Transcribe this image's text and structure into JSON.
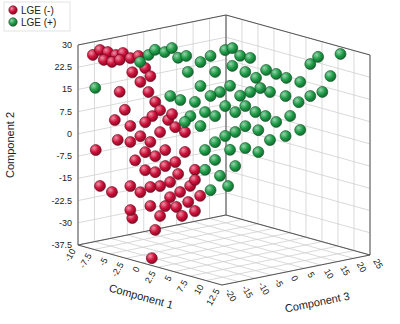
{
  "chart_data": {
    "type": "scatter",
    "x_label": "Component 1",
    "y_label": "Component 2",
    "z_label": "Component 3",
    "xlim": [
      -10,
      12.5
    ],
    "xticks": [
      -10,
      -7.5,
      -5,
      -2.5,
      0,
      2.5,
      5,
      7.5,
      10,
      12.5
    ],
    "ylim": [
      -37.5,
      30
    ],
    "yticks": [
      -37.5,
      -30,
      -22.5,
      -15,
      -7.5,
      0,
      7.5,
      15,
      22.5,
      30
    ],
    "zlim": [
      -20,
      25
    ],
    "zticks": [
      -20,
      -15,
      -10,
      -5,
      0,
      5,
      10,
      15,
      20,
      25
    ],
    "grid": true,
    "legend": "top-left",
    "series": [
      {
        "name": "LGE (-)",
        "color": "#d0103a",
        "marker": "circle",
        "x": [
          -8.5,
          -7.8,
          -7.0,
          -6.2,
          -5.5,
          -7.4,
          -6.6,
          -5.8,
          -4.7,
          -3.9,
          -3.2,
          -2.7,
          -3.7,
          -4.5,
          -2.9,
          -2.2,
          -1.7,
          -2.5,
          -3.2,
          -4.7,
          -5.3,
          -6.3,
          -6.0,
          -4.7,
          -3.7,
          -2.7,
          -1.7,
          -0.9,
          -0.2,
          -1.2,
          -2.2,
          -3.2,
          -4.2,
          -3.2,
          -2.2,
          -1.2,
          -0.2,
          0.8,
          0.1,
          -0.7,
          -1.7,
          -2.7,
          -3.7,
          -4.7,
          -0.7,
          0.3,
          1.3,
          1.8,
          1.1,
          -0.1,
          -1.2,
          0.5,
          1.8,
          2.3,
          -1.7,
          -2.7,
          -4.5,
          -2.2,
          0.4,
          -4.7,
          -7.8,
          -6.6,
          1.8,
          0.8,
          -0.5,
          -5.8,
          -8.2
        ],
        "values": [
          27.2,
          29.1,
          28.7,
          28.0,
          28.9,
          25.9,
          25.5,
          26.5,
          27.5,
          28.5,
          24.7,
          22.1,
          19.8,
          22.8,
          16.7,
          13.6,
          11.0,
          8.7,
          6.4,
          4.6,
          9.8,
          6.0,
          -0.6,
          -0.8,
          1.5,
          -0.1,
          3.6,
          8.0,
          5.8,
          -2.3,
          -4.7,
          -3.7,
          -6.8,
          -9.8,
          -10.1,
          -7.7,
          -6.0,
          -2.2,
          -9.9,
          -12.9,
          -14.6,
          -15.3,
          -17.4,
          -15.7,
          -18.0,
          -15.9,
          -13.5,
          -7.9,
          -19.0,
          -21.1,
          -21.2,
          -23.9,
          -21.8,
          -16.5,
          -24.7,
          -21.7,
          -26.4,
          -29.6,
          -36.2,
          -23.8,
          -16.8,
          -18.4,
          -11.3,
          4.5,
          10.1,
          15.7,
          -4.8
        ],
        "z": [
          -18.4,
          -17.6,
          -16.8,
          -15.9,
          -15.1,
          -17.2,
          -16.3,
          -15.5,
          -14.4,
          -13.5,
          -12.8,
          -12.2,
          -13.3,
          -14.2,
          -12.4,
          -11.7,
          -11.2,
          -12.0,
          -12.8,
          -14.4,
          -14.9,
          -16.0,
          -15.7,
          -14.4,
          -13.3,
          -12.2,
          -11.2,
          -10.3,
          -9.5,
          -10.6,
          -11.7,
          -12.8,
          -13.9,
          -12.8,
          -11.7,
          -10.6,
          -9.5,
          -8.5,
          -9.2,
          -10.1,
          -11.2,
          -12.2,
          -13.3,
          -14.4,
          -10.1,
          -9.0,
          -7.9,
          -7.4,
          -8.1,
          -9.4,
          -10.6,
          -8.8,
          -7.4,
          -6.8,
          -11.2,
          -12.2,
          -14.2,
          -11.7,
          -17.8,
          -14.4,
          -17.6,
          -16.3,
          -7.4,
          -8.5,
          -9.9,
          -15.5,
          -18.1
        ]
      },
      {
        "name": "LGE (+)",
        "color": "#1e9e48",
        "marker": "circle",
        "x": [
          -8.8,
          -5.7,
          -5.1,
          -4.7,
          -4.0,
          -3.5,
          -3.1,
          -2.5,
          -2.4,
          -1.5,
          -0.8,
          -0.5,
          0.2,
          0.7,
          1.2,
          1.9,
          0.7,
          1.6,
          2.3,
          3.0,
          3.7,
          4.4,
          5.4,
          6.1,
          6.6,
          8.2,
          7.5,
          6.9,
          6.1,
          5.3,
          4.4,
          3.3,
          2.6,
          1.9,
          1.2,
          0.5,
          -0.2,
          -0.8,
          -1.5,
          -1.9,
          -1.2,
          -0.5,
          0.2,
          0.9,
          1.6,
          2.3,
          3.0,
          3.7,
          4.7,
          5.4,
          4.4,
          3.3,
          2.5,
          1.6,
          0.9,
          0.2,
          -0.5,
          -1.5,
          -2.2,
          -1.2,
          -0.5,
          0.5,
          1.6,
          2.5,
          0.9,
          -0.2,
          -1.2,
          -0.8,
          0.4,
          -2.6,
          -2.9,
          -3.6
        ],
        "values": [
          15.6,
          24.5,
          26.9,
          28.6,
          27.9,
          29.3,
          26.0,
          26.7,
          21.3,
          24.7,
          26.8,
          21.4,
          28.8,
          29.5,
          26.9,
          26.2,
          23.5,
          21.5,
          19.5,
          22.2,
          20.9,
          19.6,
          18.3,
          24.4,
          26.8,
          27.9,
          20.4,
          15.0,
          13.6,
          11.5,
          13.5,
          14.8,
          16.1,
          14.7,
          13.4,
          16.7,
          14.6,
          13.3,
          16.6,
          11.2,
          7.8,
          6.5,
          9.9,
          7.9,
          10.0,
          8.0,
          6.7,
          4.7,
          6.8,
          2.1,
          0,
          -1.4,
          1.9,
          3.2,
          1.2,
          -0.2,
          -2.3,
          3.1,
          6.4,
          -5.0,
          -8.3,
          -4.9,
          -4.2,
          -5.5,
          -10.3,
          -13.7,
          -11.7,
          -18.5,
          -17.1,
          4.4,
          11.8,
          13.1
        ],
        "z": [
          -17.1,
          -9.5,
          -8.1,
          -6.9,
          -5.3,
          -4.1,
          -3.0,
          -1.7,
          -1.4,
          0.7,
          2.4,
          3.2,
          4.9,
          6.1,
          7.5,
          9.2,
          6.1,
          8.3,
          10.2,
          11.9,
          13.6,
          15.3,
          17.6,
          19.3,
          20.7,
          24.4,
          22.7,
          21.4,
          19.3,
          17.3,
          15.1,
          12.5,
          10.9,
          9.2,
          7.5,
          5.8,
          4.1,
          2.4,
          0.7,
          -0.2,
          1.5,
          3.2,
          4.9,
          6.6,
          8.3,
          10.0,
          11.7,
          13.6,
          15.9,
          17.6,
          15.1,
          12.5,
          10.5,
          8.3,
          6.6,
          4.9,
          3.2,
          0.7,
          -1.0,
          1.5,
          3.2,
          5.8,
          8.3,
          10.5,
          6.6,
          4.1,
          1.5,
          2.4,
          5.4,
          -1.9,
          -2.7,
          -4.4
        ]
      }
    ]
  }
}
